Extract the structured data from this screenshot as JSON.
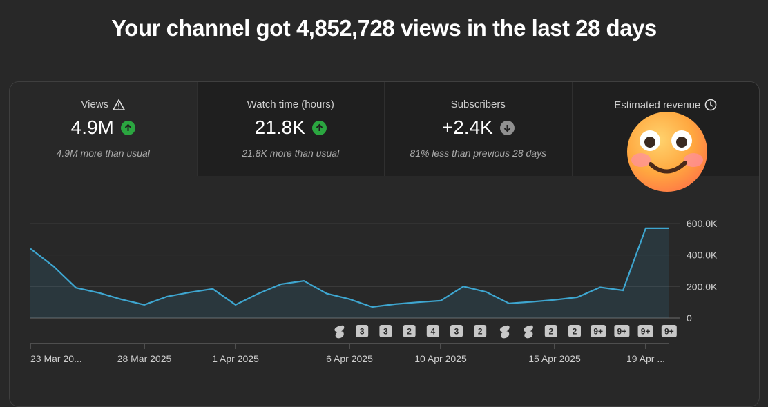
{
  "headline": "Your channel got 4,852,728 views in the last 28 days",
  "cards": [
    {
      "label": "Views",
      "value": "4.9M",
      "trend": "up",
      "sub": "4.9M more than usual",
      "icon": "warning-icon"
    },
    {
      "label": "Watch time (hours)",
      "value": "21.8K",
      "trend": "up",
      "sub": "21.8K more than usual"
    },
    {
      "label": "Subscribers",
      "value": "+2.4K",
      "trend": "down",
      "sub": "81% less than previous 28 days"
    },
    {
      "label": "Estimated revenue",
      "value": "$",
      "trend": "",
      "sub": "",
      "icon": "clock-icon"
    }
  ],
  "colors": {
    "line": "#3ea6d0",
    "up": "#2ba640",
    "down": "#909090"
  },
  "chart_data": {
    "type": "area",
    "x": [
      "23 Mar 2025",
      "24 Mar 2025",
      "25 Mar 2025",
      "26 Mar 2025",
      "27 Mar 2025",
      "28 Mar 2025",
      "29 Mar 2025",
      "30 Mar 2025",
      "31 Mar 2025",
      "1 Apr 2025",
      "2 Apr 2025",
      "3 Apr 2025",
      "4 Apr 2025",
      "5 Apr 2025",
      "6 Apr 2025",
      "7 Apr 2025",
      "8 Apr 2025",
      "9 Apr 2025",
      "10 Apr 2025",
      "11 Apr 2025",
      "12 Apr 2025",
      "13 Apr 2025",
      "14 Apr 2025",
      "15 Apr 2025",
      "16 Apr 2025",
      "17 Apr 2025",
      "18 Apr 2025",
      "19 Apr 2025",
      "20 Apr 2025"
    ],
    "values": [
      440000,
      330000,
      192000,
      160000,
      118000,
      84000,
      136000,
      163000,
      185000,
      84000,
      155000,
      215000,
      236000,
      155000,
      120000,
      70000,
      88000,
      100000,
      110000,
      200000,
      165000,
      93000,
      103000,
      115000,
      132000,
      195000,
      175000,
      570000,
      570000
    ],
    "y_ticks": [
      "600.0K",
      "400.0K",
      "200.0K",
      "0"
    ],
    "ylim": [
      0,
      600000
    ],
    "x_tick_labels": [
      {
        "label": "23 Mar 20...",
        "index": 0
      },
      {
        "label": "28 Mar 2025",
        "index": 5
      },
      {
        "label": "1 Apr 2025",
        "index": 9
      },
      {
        "label": "6 Apr 2025",
        "index": 14
      },
      {
        "label": "10 Apr 2025",
        "index": 18
      },
      {
        "label": "15 Apr 2025",
        "index": 23
      },
      {
        "label": "19 Apr ...",
        "index": 27
      }
    ],
    "badges": [
      "shorts",
      "3",
      "3",
      "2",
      "4",
      "3",
      "2",
      "shorts",
      "shorts",
      "2",
      "2",
      "9+",
      "9+",
      "9+",
      "9+"
    ]
  }
}
